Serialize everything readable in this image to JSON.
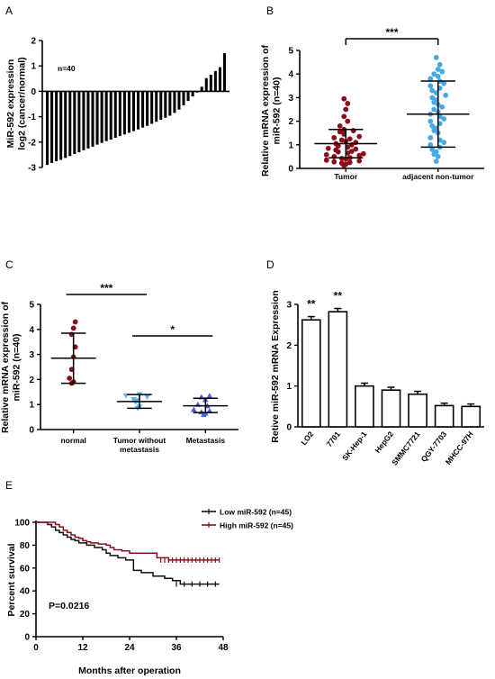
{
  "chart_data": [
    {
      "id": "A",
      "type": "bar",
      "panel_label": "A",
      "annotation": "n=40",
      "ylabel": "MiR-592 expression\nlog2 (cancer/normal)",
      "xlabel": "",
      "ylim": [
        -3,
        2
      ],
      "yticks": [
        -3,
        -2,
        -1,
        0,
        1,
        2
      ],
      "values": [
        -2.9,
        -2.82,
        -2.75,
        -2.7,
        -2.62,
        -2.55,
        -2.47,
        -2.4,
        -2.32,
        -2.25,
        -2.18,
        -2.1,
        -2.03,
        -1.96,
        -1.9,
        -1.83,
        -1.76,
        -1.7,
        -1.63,
        -1.57,
        -1.5,
        -1.43,
        -1.36,
        -1.28,
        -1.2,
        -1.12,
        -1.04,
        -0.96,
        -0.85,
        -0.72,
        -0.55,
        -0.38,
        -0.2,
        -0.05,
        0.18,
        0.52,
        0.65,
        0.8,
        0.95,
        1.5
      ]
    },
    {
      "id": "B",
      "type": "scatter",
      "panel_label": "B",
      "ylabel": "Relative mRNA expression of\nmiR-592 (n=40)",
      "ylim": [
        0,
        5
      ],
      "yticks": [
        0,
        1,
        2,
        3,
        4,
        5
      ],
      "categories": [
        "Tumor",
        "adjacent non-tumor"
      ],
      "significance": [
        {
          "from": 0,
          "to": 1,
          "label": "***"
        }
      ],
      "colors": [
        "#8b0d1a",
        "#47a9e4"
      ],
      "series": [
        {
          "values": [
            0.12,
            0.18,
            0.22,
            0.25,
            0.28,
            0.32,
            0.35,
            0.4,
            0.42,
            0.45,
            0.5,
            0.55,
            0.58,
            0.62,
            0.65,
            0.7,
            0.72,
            0.78,
            0.82,
            0.85,
            0.9,
            0.95,
            1.0,
            1.05,
            1.1,
            1.15,
            1.2,
            1.25,
            1.3,
            1.35,
            1.45,
            1.55,
            1.6,
            1.65,
            1.8,
            2.0,
            2.2,
            2.5,
            2.75,
            2.95
          ],
          "mean": 1.05,
          "sd_low": 0.45,
          "sd_high": 1.65
        },
        {
          "values": [
            0.3,
            0.5,
            0.6,
            0.7,
            0.8,
            0.9,
            1.0,
            1.1,
            1.2,
            1.3,
            1.5,
            1.6,
            1.7,
            1.8,
            1.9,
            2.0,
            2.1,
            2.2,
            2.3,
            2.4,
            2.5,
            2.6,
            2.7,
            2.8,
            2.9,
            3.0,
            3.1,
            3.2,
            3.3,
            3.4,
            3.5,
            3.6,
            3.7,
            3.8,
            3.9,
            4.0,
            4.1,
            4.2,
            4.4,
            4.7
          ],
          "mean": 2.3,
          "sd_low": 0.9,
          "sd_high": 3.7
        }
      ]
    },
    {
      "id": "C",
      "type": "scatter",
      "panel_label": "C",
      "ylabel": "Relative mRNA expression of\nmiR-592 (n=40)",
      "ylim": [
        0,
        5
      ],
      "yticks": [
        0,
        1,
        2,
        3,
        4,
        5
      ],
      "categories": [
        "normal",
        "Tumor without\nmetastasis",
        "Metastasis"
      ],
      "significance": [
        {
          "from": 0,
          "to": 1,
          "label": "***"
        },
        {
          "from": 1,
          "to": 2,
          "label": "*"
        }
      ],
      "colors": [
        "#8b0d1a",
        "#5bb8ea",
        "#4a5fd8"
      ],
      "series": [
        {
          "values": [
            1.85,
            1.9,
            2.05,
            2.4,
            2.9,
            3.3,
            3.8,
            4.05,
            4.3
          ],
          "mean": 2.85,
          "sd_low": 1.85,
          "sd_high": 3.85
        },
        {
          "values": [
            0.85,
            0.9,
            1.1,
            1.15,
            1.2,
            1.3,
            1.35,
            1.4
          ],
          "mean": 1.12,
          "sd_low": 0.85,
          "sd_high": 1.4
        },
        {
          "values": [
            0.6,
            0.65,
            0.7,
            0.75,
            0.8,
            0.95,
            1.0,
            1.2,
            1.3,
            1.35
          ],
          "mean": 0.95,
          "sd_low": 0.68,
          "sd_high": 1.25
        }
      ]
    },
    {
      "id": "D",
      "type": "bar",
      "panel_label": "D",
      "ylabel": "Retive miR-592 mRNA Expression",
      "ylim": [
        0,
        3
      ],
      "yticks": [
        0,
        1,
        2,
        3
      ],
      "categories": [
        "LO2",
        "7701",
        "SK-Hep-1",
        "HepG2",
        "SMMC7721",
        "QGY-7703",
        "MHCC-97H"
      ],
      "values": [
        2.62,
        2.82,
        1.0,
        0.9,
        0.8,
        0.52,
        0.5
      ],
      "errors": [
        0.08,
        0.08,
        0.07,
        0.07,
        0.07,
        0.06,
        0.06
      ],
      "bar_labels": [
        "**",
        "**",
        "",
        "",
        "",
        "",
        ""
      ]
    },
    {
      "id": "E",
      "type": "line",
      "panel_label": "E",
      "xlabel": "Months after operation",
      "ylabel": "Percent survival",
      "xlim": [
        0,
        48
      ],
      "ylim": [
        0,
        100
      ],
      "xticks": [
        0,
        12,
        24,
        36,
        48
      ],
      "yticks": [
        0,
        20,
        40,
        60,
        80,
        100
      ],
      "annotation": "P=0.0216",
      "legend_position": "top-right",
      "series": [
        {
          "name": "Low miR-592 (n=45)",
          "color": "#111111",
          "x": [
            0,
            3,
            4,
            5,
            6,
            7,
            8,
            9,
            10,
            11,
            13,
            15,
            17,
            18,
            19,
            21,
            23,
            25,
            27,
            30,
            33,
            35,
            37,
            47
          ],
          "y": [
            100,
            98,
            96,
            93,
            91,
            89,
            87,
            85,
            84,
            82,
            80,
            78,
            76,
            73,
            71,
            69,
            67,
            58,
            56,
            53,
            51,
            49,
            46,
            46
          ],
          "censored": [
            36,
            38,
            40,
            42,
            44,
            46
          ]
        },
        {
          "name": "High miR-592 (n=45)",
          "color": "#8b0d1a",
          "x": [
            0,
            5,
            6,
            7,
            8,
            9,
            10,
            11,
            12,
            13,
            14,
            16,
            18,
            19,
            20,
            22,
            24,
            31,
            34,
            47
          ],
          "y": [
            100,
            98,
            96,
            93,
            91,
            89,
            87,
            86,
            84,
            83,
            82,
            81,
            80,
            78,
            76,
            75,
            73,
            69,
            67,
            67
          ],
          "censored": [
            32,
            33,
            34,
            35,
            36,
            37,
            38,
            39,
            40,
            41,
            42,
            43,
            44,
            45,
            46,
            47
          ]
        }
      ]
    }
  ]
}
